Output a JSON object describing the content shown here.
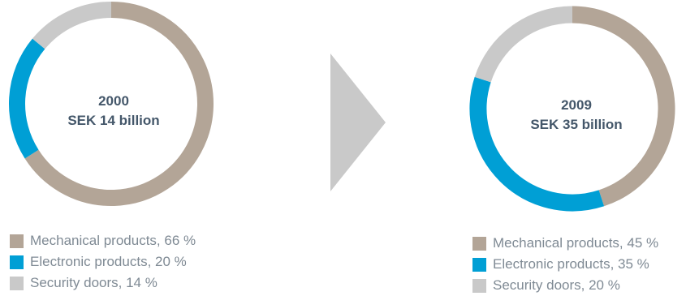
{
  "chart_data": [
    {
      "type": "pie",
      "title": "2000",
      "subtitle": "SEK 14 billion",
      "categories": [
        "Mechanical products",
        "Electronic products",
        "Security doors"
      ],
      "values": [
        66,
        20,
        14
      ],
      "unit": "%",
      "colors": [
        "#b3a597",
        "#009fd5",
        "#c9c9c9"
      ],
      "legend": [
        {
          "label": "Mechanical products, 66 %"
        },
        {
          "label": "Electronic products, 20 %"
        },
        {
          "label": "Security doors, 14 %"
        }
      ]
    },
    {
      "type": "pie",
      "title": "2009",
      "subtitle": "SEK 35 billion",
      "categories": [
        "Mechanical products",
        "Electronic products",
        "Security doors"
      ],
      "values": [
        45,
        35,
        20
      ],
      "unit": "%",
      "colors": [
        "#b3a597",
        "#009fd5",
        "#c9c9c9"
      ],
      "legend": [
        {
          "label": "Mechanical products, 45 %"
        },
        {
          "label": "Electronic products, 35 %"
        },
        {
          "label": "Security doors, 20 %"
        }
      ]
    }
  ],
  "arrow": {
    "icon": "arrow-right-icon",
    "color": "#c9c9c9"
  }
}
